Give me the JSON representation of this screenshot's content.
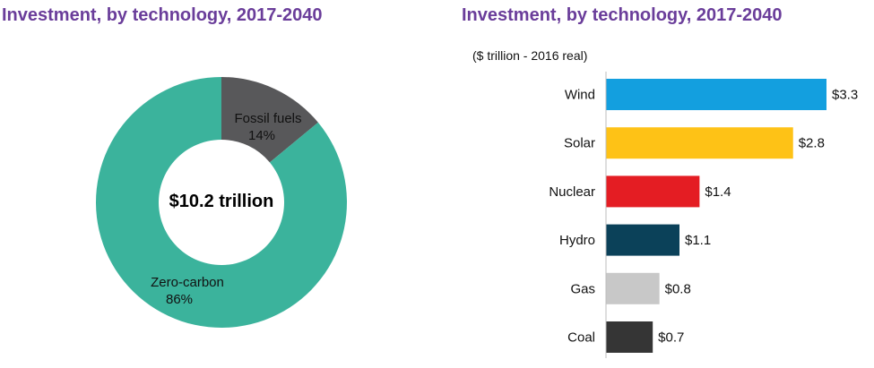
{
  "chart_data": [
    {
      "type": "pie",
      "title": "Investment, by technology, 2017-2040",
      "center_label": "$10.2 trillion",
      "slices": [
        {
          "name": "Fossil fuels",
          "percent_label": "14%",
          "value": 14,
          "color": "#58585a"
        },
        {
          "name": "Zero-carbon",
          "percent_label": "86%",
          "value": 86,
          "color": "#3bb39c"
        }
      ]
    },
    {
      "type": "bar",
      "orientation": "horizontal",
      "title": "Investment, by technology, 2017-2040",
      "subtitle": "($ trillion - 2016 real)",
      "categories": [
        "Wind",
        "Solar",
        "Nuclear",
        "Hydro",
        "Gas",
        "Coal"
      ],
      "values": [
        3.3,
        2.8,
        1.4,
        1.1,
        0.8,
        0.7
      ],
      "value_labels": [
        "$3.3",
        "$2.8",
        "$1.4",
        "$1.1",
        "$0.8",
        "$0.7"
      ],
      "colors": [
        "#139fdf",
        "#fec216",
        "#e41d23",
        "#0b4159",
        "#c8c8c8",
        "#353535"
      ],
      "xlim": [
        0,
        3.3
      ]
    }
  ]
}
